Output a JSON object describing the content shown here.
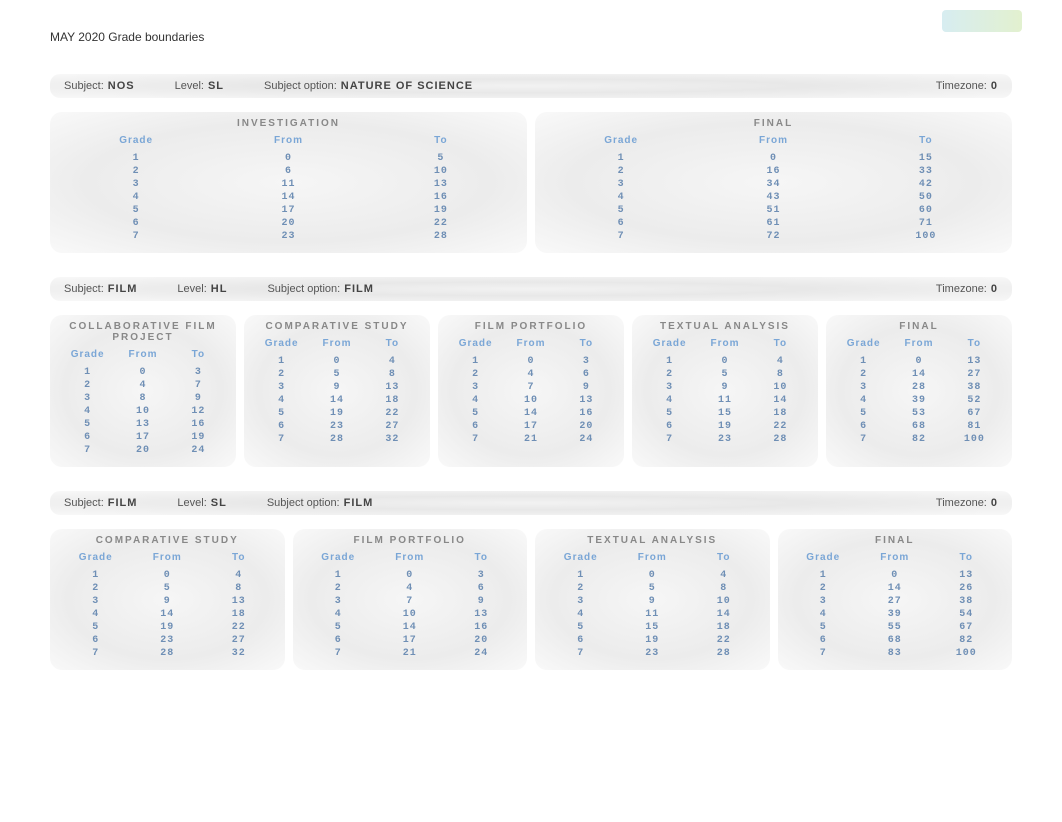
{
  "doc_title": "MAY 2020 Grade boundaries",
  "labels": {
    "subject": "Subject:",
    "level": "Level:",
    "subject_option": "Subject option:",
    "timezone": "Timezone:"
  },
  "colors": {
    "header_text": "#7aa6d6",
    "cell_text": "#6f8fb5",
    "section_title": "#888888",
    "bar_bg": "#efefef"
  },
  "column_headers": {
    "grade": "Grade",
    "from": "From",
    "to": "To"
  },
  "blocks": [
    {
      "subject": "NOS",
      "level": "SL",
      "subject_option": "NATURE OF SCIENCE",
      "timezone": "0",
      "sections": [
        {
          "title": "INVESTIGATION",
          "rows": [
            [
              "1",
              "0",
              "5"
            ],
            [
              "2",
              "6",
              "10"
            ],
            [
              "3",
              "11",
              "13"
            ],
            [
              "4",
              "14",
              "16"
            ],
            [
              "5",
              "17",
              "19"
            ],
            [
              "6",
              "20",
              "22"
            ],
            [
              "7",
              "23",
              "28"
            ]
          ]
        },
        {
          "title": "FINAL",
          "rows": [
            [
              "1",
              "0",
              "15"
            ],
            [
              "2",
              "16",
              "33"
            ],
            [
              "3",
              "34",
              "42"
            ],
            [
              "4",
              "43",
              "50"
            ],
            [
              "5",
              "51",
              "60"
            ],
            [
              "6",
              "61",
              "71"
            ],
            [
              "7",
              "72",
              "100"
            ]
          ]
        }
      ]
    },
    {
      "subject": "FILM",
      "level": "HL",
      "subject_option": "FILM",
      "timezone": "0",
      "sections": [
        {
          "title": "COLLABORATIVE FILM PROJECT",
          "rows": [
            [
              "1",
              "0",
              "3"
            ],
            [
              "2",
              "4",
              "7"
            ],
            [
              "3",
              "8",
              "9"
            ],
            [
              "4",
              "10",
              "12"
            ],
            [
              "5",
              "13",
              "16"
            ],
            [
              "6",
              "17",
              "19"
            ],
            [
              "7",
              "20",
              "24"
            ]
          ]
        },
        {
          "title": "COMPARATIVE STUDY",
          "rows": [
            [
              "1",
              "0",
              "4"
            ],
            [
              "2",
              "5",
              "8"
            ],
            [
              "3",
              "9",
              "13"
            ],
            [
              "4",
              "14",
              "18"
            ],
            [
              "5",
              "19",
              "22"
            ],
            [
              "6",
              "23",
              "27"
            ],
            [
              "7",
              "28",
              "32"
            ]
          ]
        },
        {
          "title": "FILM PORTFOLIO",
          "rows": [
            [
              "1",
              "0",
              "3"
            ],
            [
              "2",
              "4",
              "6"
            ],
            [
              "3",
              "7",
              "9"
            ],
            [
              "4",
              "10",
              "13"
            ],
            [
              "5",
              "14",
              "16"
            ],
            [
              "6",
              "17",
              "20"
            ],
            [
              "7",
              "21",
              "24"
            ]
          ]
        },
        {
          "title": "TEXTUAL ANALYSIS",
          "rows": [
            [
              "1",
              "0",
              "4"
            ],
            [
              "2",
              "5",
              "8"
            ],
            [
              "3",
              "9",
              "10"
            ],
            [
              "4",
              "11",
              "14"
            ],
            [
              "5",
              "15",
              "18"
            ],
            [
              "6",
              "19",
              "22"
            ],
            [
              "7",
              "23",
              "28"
            ]
          ]
        },
        {
          "title": "FINAL",
          "rows": [
            [
              "1",
              "0",
              "13"
            ],
            [
              "2",
              "14",
              "27"
            ],
            [
              "3",
              "28",
              "38"
            ],
            [
              "4",
              "39",
              "52"
            ],
            [
              "5",
              "53",
              "67"
            ],
            [
              "6",
              "68",
              "81"
            ],
            [
              "7",
              "82",
              "100"
            ]
          ]
        }
      ]
    },
    {
      "subject": "FILM",
      "level": "SL",
      "subject_option": "FILM",
      "timezone": "0",
      "sections": [
        {
          "title": "COMPARATIVE STUDY",
          "rows": [
            [
              "1",
              "0",
              "4"
            ],
            [
              "2",
              "5",
              "8"
            ],
            [
              "3",
              "9",
              "13"
            ],
            [
              "4",
              "14",
              "18"
            ],
            [
              "5",
              "19",
              "22"
            ],
            [
              "6",
              "23",
              "27"
            ],
            [
              "7",
              "28",
              "32"
            ]
          ]
        },
        {
          "title": "FILM PORTFOLIO",
          "rows": [
            [
              "1",
              "0",
              "3"
            ],
            [
              "2",
              "4",
              "6"
            ],
            [
              "3",
              "7",
              "9"
            ],
            [
              "4",
              "10",
              "13"
            ],
            [
              "5",
              "14",
              "16"
            ],
            [
              "6",
              "17",
              "20"
            ],
            [
              "7",
              "21",
              "24"
            ]
          ]
        },
        {
          "title": "TEXTUAL ANALYSIS",
          "rows": [
            [
              "1",
              "0",
              "4"
            ],
            [
              "2",
              "5",
              "8"
            ],
            [
              "3",
              "9",
              "10"
            ],
            [
              "4",
              "11",
              "14"
            ],
            [
              "5",
              "15",
              "18"
            ],
            [
              "6",
              "19",
              "22"
            ],
            [
              "7",
              "23",
              "28"
            ]
          ]
        },
        {
          "title": "FINAL",
          "rows": [
            [
              "1",
              "0",
              "13"
            ],
            [
              "2",
              "14",
              "26"
            ],
            [
              "3",
              "27",
              "38"
            ],
            [
              "4",
              "39",
              "54"
            ],
            [
              "5",
              "55",
              "67"
            ],
            [
              "6",
              "68",
              "82"
            ],
            [
              "7",
              "83",
              "100"
            ]
          ]
        }
      ]
    }
  ]
}
